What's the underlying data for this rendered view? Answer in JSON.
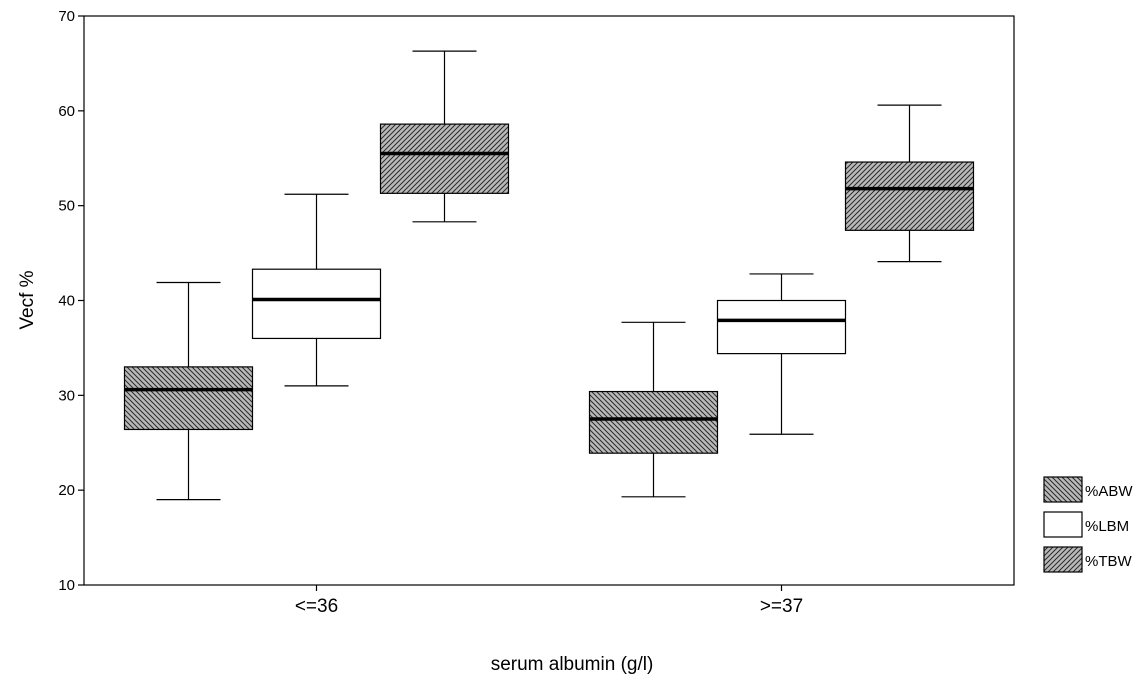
{
  "chart_data": {
    "type": "boxplot",
    "xlabel": "serum albumin (g/l)",
    "ylabel": "Vecf %",
    "ylim": [
      10,
      70
    ],
    "yticks": [
      10,
      20,
      30,
      40,
      50,
      60,
      70
    ],
    "categories": [
      "<=36",
      ">=37"
    ],
    "legend_position": "right-bottom",
    "series": [
      {
        "name": "%ABW",
        "fill": "hatch-back",
        "boxes": [
          {
            "min": 19.0,
            "q1": 26.4,
            "median": 30.6,
            "q3": 33.0,
            "max": 41.9
          },
          {
            "min": 19.3,
            "q1": 23.9,
            "median": 27.5,
            "q3": 30.4,
            "max": 37.7
          }
        ]
      },
      {
        "name": "%LBM",
        "fill": "none",
        "boxes": [
          {
            "min": 31.0,
            "q1": 36.0,
            "median": 40.1,
            "q3": 43.3,
            "max": 51.2
          },
          {
            "min": 25.9,
            "q1": 34.4,
            "median": 37.9,
            "q3": 40.0,
            "max": 42.8
          }
        ]
      },
      {
        "name": "%TBW",
        "fill": "hatch-forward",
        "boxes": [
          {
            "min": 48.3,
            "q1": 51.3,
            "median": 55.5,
            "q3": 58.6,
            "max": 66.3
          },
          {
            "min": 44.1,
            "q1": 47.4,
            "median": 51.8,
            "q3": 54.6,
            "max": 60.6
          }
        ]
      }
    ]
  }
}
